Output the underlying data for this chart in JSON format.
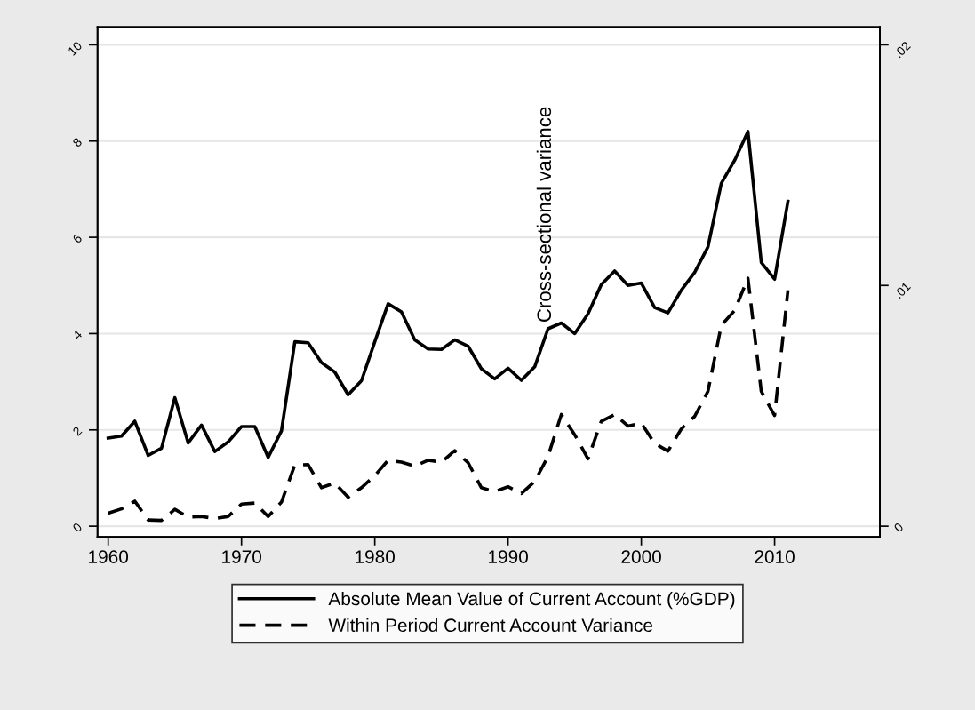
{
  "chart_data": {
    "type": "line",
    "x": [
      1960,
      1961,
      1962,
      1963,
      1964,
      1965,
      1966,
      1967,
      1968,
      1969,
      1970,
      1971,
      1972,
      1973,
      1974,
      1975,
      1976,
      1977,
      1978,
      1979,
      1980,
      1981,
      1982,
      1983,
      1984,
      1985,
      1986,
      1987,
      1988,
      1989,
      1990,
      1991,
      1992,
      1993,
      1994,
      1995,
      1996,
      1997,
      1998,
      1999,
      2000,
      2001,
      2002,
      2003,
      2004,
      2005,
      2006,
      2007,
      2008,
      2009,
      2010,
      2011
    ],
    "series": [
      {
        "name": "Absolute Mean Value of Current Account (%GDP)",
        "color": "#000000",
        "line_style": "solid",
        "values": [
          1.83,
          1.87,
          2.18,
          1.47,
          1.62,
          2.67,
          1.73,
          2.1,
          1.55,
          1.75,
          2.07,
          2.07,
          1.43,
          1.98,
          3.83,
          3.81,
          3.4,
          3.2,
          2.73,
          3.02,
          3.83,
          4.62,
          4.45,
          3.87,
          3.68,
          3.67,
          3.87,
          3.74,
          3.27,
          3.06,
          3.28,
          3.03,
          3.31,
          4.1,
          4.22,
          4.0,
          4.41,
          5.02,
          5.3,
          5.0,
          5.05,
          4.54,
          4.43,
          4.9,
          5.27,
          5.8,
          7.12,
          7.6,
          8.2,
          5.48,
          5.13,
          6.75
        ]
      },
      {
        "name": "Within Period Current Account Variance",
        "color": "#000000",
        "line_style": "dashed",
        "axis": "y2",
        "values": [
          0.00054,
          0.00072,
          0.00104,
          0.00026,
          0.00024,
          0.0007,
          0.00038,
          0.0004,
          0.00032,
          0.0004,
          0.00092,
          0.00096,
          0.0004,
          0.001,
          0.00254,
          0.00256,
          0.0016,
          0.0018,
          0.0012,
          0.0016,
          0.0021,
          0.00274,
          0.00266,
          0.0025,
          0.00274,
          0.00266,
          0.00314,
          0.00264,
          0.0016,
          0.00144,
          0.00164,
          0.00136,
          0.00186,
          0.0029,
          0.00464,
          0.0038,
          0.0028,
          0.00436,
          0.00464,
          0.00416,
          0.00428,
          0.00344,
          0.00312,
          0.00404,
          0.00456,
          0.0056,
          0.00834,
          0.00896,
          0.0103,
          0.0056,
          0.0046,
          0.0098
        ]
      }
    ],
    "xlim": [
      1959.2,
      2017.9
    ],
    "xticks": [
      1960,
      1970,
      1980,
      1990,
      2000,
      2010
    ],
    "ylim": [
      -0.22,
      10.37
    ],
    "yticks": [
      0,
      2,
      4,
      6,
      8,
      10
    ],
    "y2lim": [
      -0.00044,
      0.02074
    ],
    "y2ticks": [
      {
        "value": 0,
        "label": "0"
      },
      {
        "value": 0.01,
        "label": ".01"
      },
      {
        "value": 0.02,
        "label": ".02"
      }
    ],
    "annotations": [
      "Cross-sectional variance"
    ],
    "grid": "y",
    "legend": "bottom"
  }
}
